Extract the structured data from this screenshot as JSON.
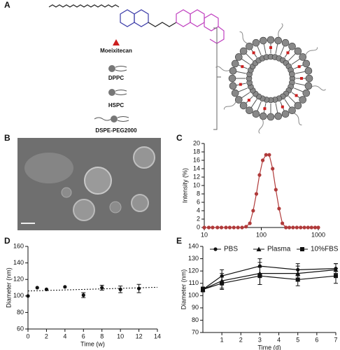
{
  "panel_labels": [
    "A",
    "B",
    "C",
    "D",
    "E"
  ],
  "panel_a": {
    "items": [
      "Moeixitecan",
      "DPPC",
      "HSPC",
      "DSPE-PEG2000"
    ]
  },
  "chart_data": [
    {
      "type": "line",
      "ylabel": "Intensity (%)",
      "xscale": "log",
      "xlim": [
        10,
        1000
      ],
      "xticks": [
        10,
        100,
        1000
      ],
      "ylim": [
        0,
        20
      ],
      "yticks": [
        0,
        2,
        4,
        6,
        8,
        10,
        12,
        14,
        16,
        18,
        20
      ],
      "x": [
        10,
        12,
        14,
        17,
        20,
        24,
        28,
        33,
        39,
        46,
        54,
        63,
        72,
        82,
        93,
        106,
        121,
        138,
        158,
        180,
        205,
        234,
        270,
        310,
        360,
        420,
        490,
        570,
        660,
        760,
        880,
        1000
      ],
      "series": [
        {
          "color": "#b03a3a",
          "marker": "circle",
          "values": [
            0,
            0,
            0,
            0,
            0,
            0,
            0,
            0,
            0,
            0,
            0.2,
            1,
            4,
            8,
            12.5,
            16,
            17.3,
            17.3,
            14,
            9,
            4.5,
            1,
            0,
            0,
            0,
            0,
            0,
            0,
            0,
            0,
            0,
            0
          ]
        }
      ]
    },
    {
      "type": "scatter",
      "xlabel": "Time (w)",
      "ylabel": "Diameter (nm)",
      "xlim": [
        0,
        14
      ],
      "xticks": [
        0,
        2,
        4,
        6,
        8,
        10,
        12,
        14
      ],
      "ylim": [
        60,
        160
      ],
      "yticks": [
        60,
        80,
        100,
        120,
        140,
        160
      ],
      "x": [
        0,
        1,
        2,
        4,
        6,
        8,
        10,
        12
      ],
      "trendline": {
        "x": [
          0,
          14
        ],
        "values": [
          106,
          110.5
        ]
      },
      "series": [
        {
          "color": "#111111",
          "marker": "circle",
          "values": [
            100,
            110,
            108,
            111,
            101,
            110,
            108,
            109
          ],
          "errors": [
            null,
            null,
            null,
            null,
            3,
            3,
            4,
            5
          ]
        }
      ]
    },
    {
      "type": "line",
      "xlabel": "Time (d)",
      "ylabel": "Diameter (nm)",
      "xlim": [
        0,
        7
      ],
      "xticks": [
        1,
        2,
        3,
        4,
        5,
        6,
        7
      ],
      "ylim": [
        70,
        140
      ],
      "yticks": [
        70,
        80,
        90,
        100,
        110,
        120,
        130,
        140
      ],
      "x": [
        0,
        1,
        3,
        5,
        7
      ],
      "series": [
        {
          "name": "PBS",
          "color": "#111111",
          "marker": "circle",
          "values": [
            105,
            116,
            124,
            121,
            122
          ],
          "errors": [
            2,
            5,
            6,
            5,
            4
          ]
        },
        {
          "name": "Plasma",
          "color": "#111111",
          "marker": "triangle",
          "values": [
            105,
            112,
            118,
            118,
            121
          ],
          "errors": [
            2,
            6,
            9,
            6,
            5
          ]
        },
        {
          "name": "10%FBS",
          "color": "#111111",
          "marker": "square",
          "values": [
            105,
            110,
            116,
            113,
            116
          ],
          "errors": [
            2,
            5,
            7,
            5,
            6
          ]
        }
      ]
    }
  ]
}
